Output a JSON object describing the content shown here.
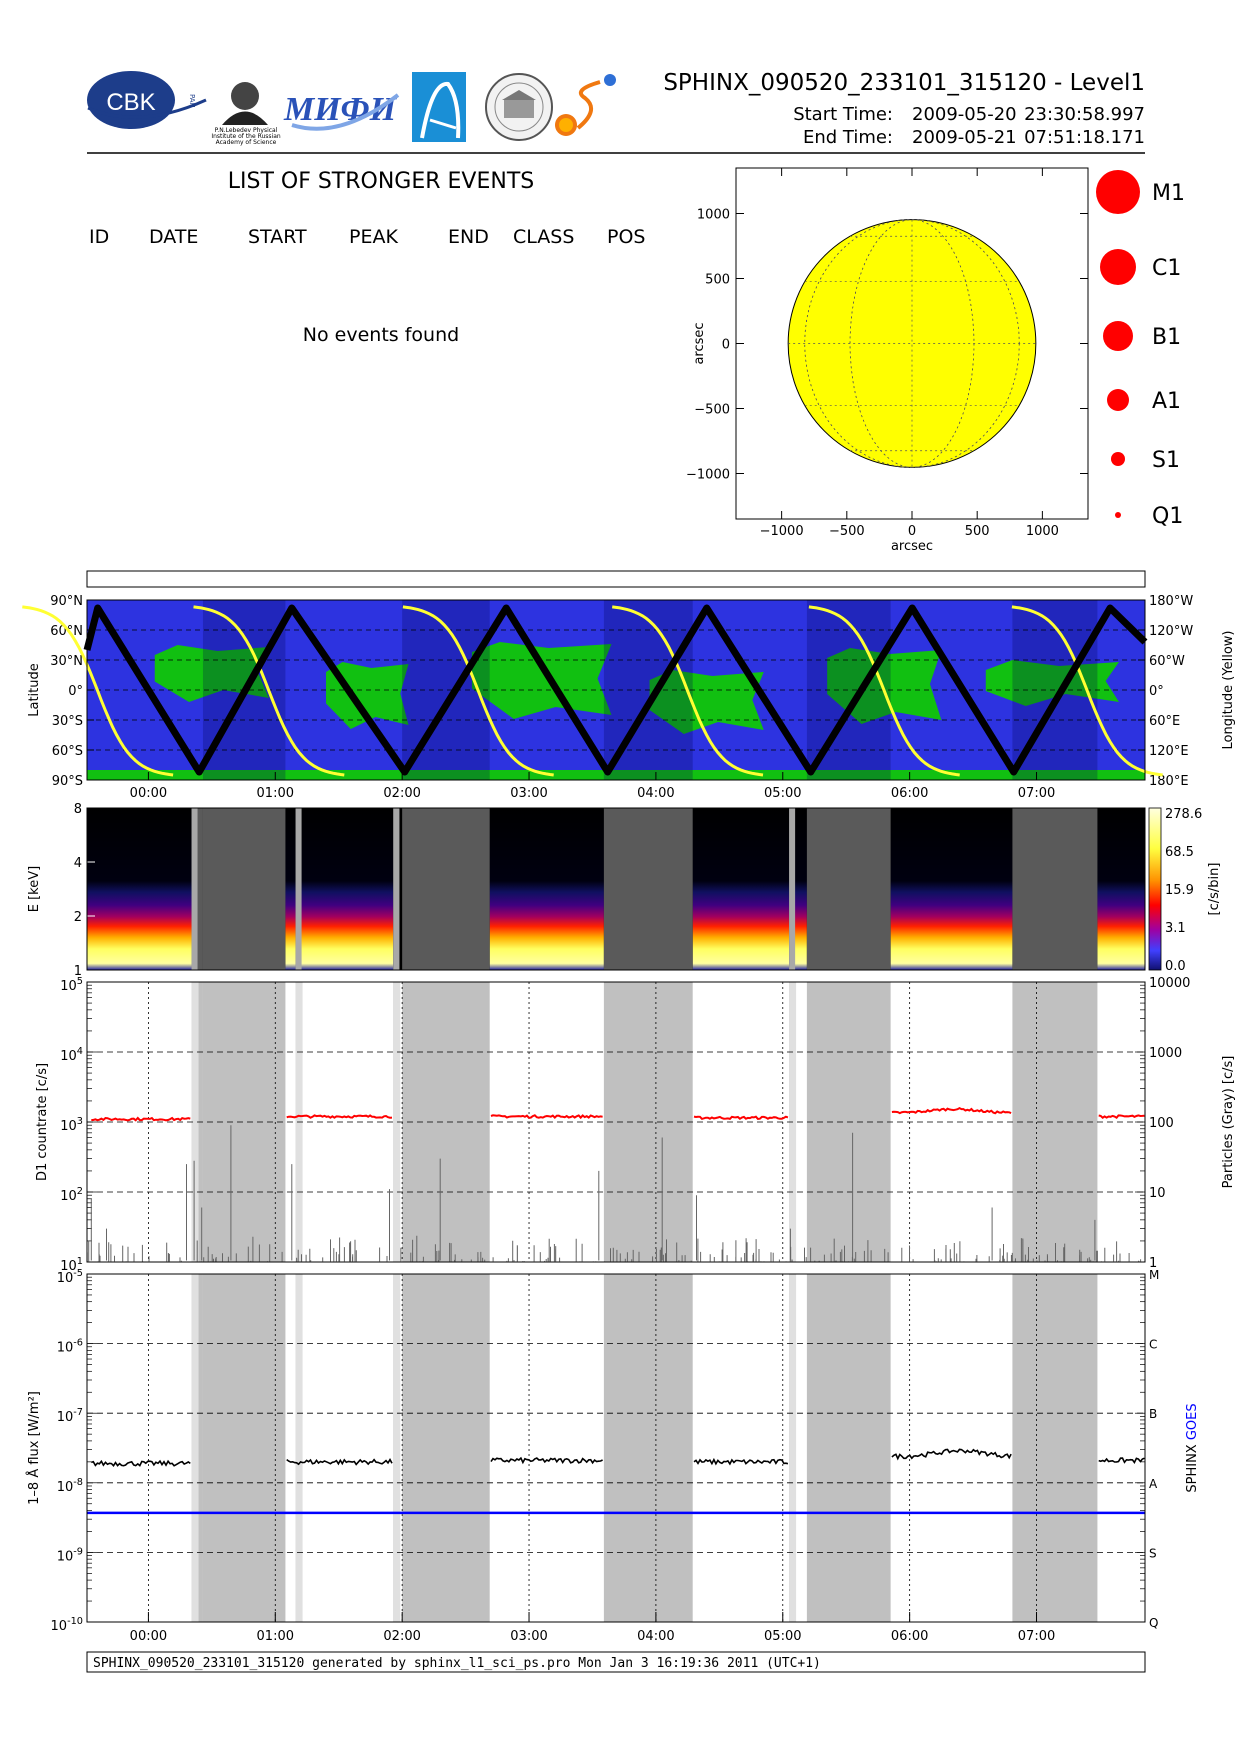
{
  "header": {
    "logos": [
      {
        "name": "cbk-logo",
        "text": "CBK",
        "subtext": "PAN"
      },
      {
        "name": "lebedev-portrait-logo",
        "caption": [
          "P.N.Lebedev Physical",
          "Institute of the Russian",
          "Academy of Science"
        ]
      },
      {
        "name": "mifi-logo",
        "text": "МИФИ"
      },
      {
        "name": "arch-logo",
        "text": ""
      },
      {
        "name": "seal-logo",
        "text": ""
      },
      {
        "name": "sun-swoosh-logo",
        "text": ""
      }
    ],
    "title": "SPHINX_090520_233101_315120 - Level1",
    "start_label": "Start Time:",
    "start_date": "2009-05-20",
    "start_time": "23:30:58.997",
    "end_label": "End Time:",
    "end_date": "2009-05-21",
    "end_time": "07:51:18.171"
  },
  "events": {
    "title": "LIST OF STRONGER EVENTS",
    "columns": [
      "ID",
      "DATE",
      "START",
      "PEAK",
      "END",
      "CLASS",
      "POS"
    ],
    "empty_message": "No events found"
  },
  "footer": {
    "text": "SPHINX_090520_233101_315120 generated by sphinx_l1_sci_ps.pro Mon Jan  3 16:19:36 2011 (UTC+1)"
  },
  "colors": {
    "sun": "#ffff00",
    "ground_blue": "#2d33e0",
    "ground_green": "#11c011",
    "track": "#000000",
    "longitude_line": "#ffff33",
    "goes": "#0000ff",
    "sphinx_d1": "#ff0000",
    "particles": "#666666",
    "shading": "#c0c0c0"
  },
  "chart_data": [
    {
      "type": "scatter",
      "name": "solar-disk",
      "xlabel": "arcsec",
      "ylabel": "arcsec",
      "xlim": [
        -1350,
        1350
      ],
      "ylim": [
        -1350,
        1350
      ],
      "x_ticks": [
        "−1000",
        "−500",
        "0",
        "500",
        "1000"
      ],
      "x_tick_values": [
        -1000,
        -500,
        0,
        500,
        1000
      ],
      "y_ticks": [
        "1000",
        "500",
        "0",
        "−500",
        "−1000"
      ],
      "y_tick_values": [
        1000,
        500,
        0,
        -500,
        -1000
      ],
      "disk_radius": 950,
      "legend": [
        {
          "label": "M1",
          "size": 6
        },
        {
          "label": "C1",
          "size": 5
        },
        {
          "label": "B1",
          "size": 4
        },
        {
          "label": "A1",
          "size": 3
        },
        {
          "label": "S1",
          "size": 2
        },
        {
          "label": "Q1",
          "size": 1
        }
      ]
    },
    {
      "type": "line",
      "name": "ground-track",
      "ylabel_left": "Latitude",
      "ylabel_right": "Longitude (Yellow)",
      "x_ticks": [
        "00:00",
        "01:00",
        "02:00",
        "03:00",
        "04:00",
        "05:00",
        "06:00",
        "07:00"
      ],
      "x_tick_hours": [
        0,
        1,
        2,
        3,
        4,
        5,
        6,
        7
      ],
      "xlim_hours": [
        -0.484,
        7.855
      ],
      "y_ticks_left": [
        "90°N",
        "60°N",
        "30°N",
        "0°",
        "30°S",
        "60°S",
        "90°S"
      ],
      "y_ticks_right": [
        "180°W",
        "120°W",
        "60°W",
        "0°",
        "60°E",
        "120°E",
        "180°E"
      ],
      "y_tick_values": [
        90,
        60,
        30,
        0,
        -30,
        -60,
        -90
      ],
      "latitude_vertices": [
        {
          "h": -0.484,
          "lat": 40
        },
        {
          "h": -0.4,
          "lat": 82
        },
        {
          "h": 0.4,
          "lat": -82
        },
        {
          "h": 1.13,
          "lat": 82
        },
        {
          "h": 2.02,
          "lat": -82
        },
        {
          "h": 2.82,
          "lat": 82
        },
        {
          "h": 3.62,
          "lat": -82
        },
        {
          "h": 4.4,
          "lat": 82
        },
        {
          "h": 5.22,
          "lat": -82
        },
        {
          "h": 6.02,
          "lat": 82
        },
        {
          "h": 6.82,
          "lat": -82
        },
        {
          "h": 7.58,
          "lat": 82
        },
        {
          "h": 7.855,
          "lat": 48
        }
      ],
      "longitude_crossings_hours": [
        -0.4,
        0.95,
        2.6,
        4.25,
        5.8,
        7.4
      ]
    },
    {
      "type": "heatmap",
      "name": "spectrogram",
      "ylabel": "E [keV]",
      "y_ticks": [
        "1",
        "2",
        "4",
        "8"
      ],
      "colorbar_label": "[c/s/bin]",
      "colorbar_ticks": [
        "278.6",
        "68.5",
        "15.9",
        "3.1",
        "0.0"
      ],
      "no_data_intervals_hours": [
        [
          0.34,
          0.43
        ],
        [
          0.43,
          1.08
        ],
        [
          1.16,
          1.19
        ],
        [
          1.93,
          1.98
        ],
        [
          2.0,
          2.69
        ],
        [
          3.59,
          4.29
        ],
        [
          5.05,
          5.08
        ],
        [
          5.19,
          5.85
        ],
        [
          6.81,
          7.48
        ]
      ]
    },
    {
      "type": "line",
      "name": "d1-countrate",
      "ylabel_left": "D1 countrate [c/s]",
      "ylabel_right": "Particles (Gray) [c/s]",
      "y_ticks_left": [
        "10^5",
        "10^4",
        "10^3",
        "10^2",
        "10^1"
      ],
      "y_ticks_left_base": "10",
      "y_ticks_left_exp": [
        "5",
        "4",
        "3",
        "2",
        "1"
      ],
      "y_ticks_right": [
        "10000",
        "1000",
        "100",
        "10",
        "1"
      ],
      "ylim_left": [
        10,
        100000
      ],
      "series": [
        {
          "name": "",
          "color": "#ff0000",
          "segments": [
            {
              "from": -0.45,
              "to": 0.33,
              "level": 1100
            },
            {
              "from": 1.09,
              "to": 1.92,
              "level": 1200
            },
            {
              "from": 2.7,
              "to": 3.58,
              "level": 1200
            },
            {
              "from": 4.3,
              "to": 5.04,
              "level": 1150
            },
            {
              "from": 5.86,
              "to": 6.8,
              "level": 1350
            },
            {
              "from": 7.49,
              "to": 7.85,
              "level": 1200
            }
          ]
        }
      ]
    },
    {
      "type": "line",
      "name": "goes-flux",
      "ylabel_left": "1–8 Å flux [W/m²]",
      "ylabel_right_a": "SPHINX",
      "ylabel_right_b": "GOES",
      "y_ticks_left_base": "10",
      "y_ticks_left_exp": [
        "-5",
        "-6",
        "-7",
        "-8",
        "-9",
        "-10"
      ],
      "y_ticks_right": [
        "M",
        "C",
        "B",
        "A",
        "S",
        "Q"
      ],
      "x_ticks": [
        "00:00",
        "01:00",
        "02:00",
        "03:00",
        "04:00",
        "05:00",
        "06:00",
        "07:00"
      ],
      "ylim": [
        1e-10,
        1e-05
      ],
      "series": [
        {
          "name": "SPHINX",
          "color": "#000000",
          "segments": [
            {
              "from": -0.45,
              "to": 0.33,
              "level": 1.9e-08
            },
            {
              "from": 1.09,
              "to": 1.92,
              "level": 2e-08
            },
            {
              "from": 2.7,
              "to": 3.58,
              "level": 2.1e-08
            },
            {
              "from": 4.3,
              "to": 5.04,
              "level": 2e-08
            },
            {
              "from": 5.86,
              "to": 6.8,
              "level": 2.4e-08
            },
            {
              "from": 7.49,
              "to": 7.85,
              "level": 2.1e-08
            }
          ]
        },
        {
          "name": "GOES",
          "color": "#0000ff",
          "level": 3.7e-09
        }
      ]
    }
  ]
}
